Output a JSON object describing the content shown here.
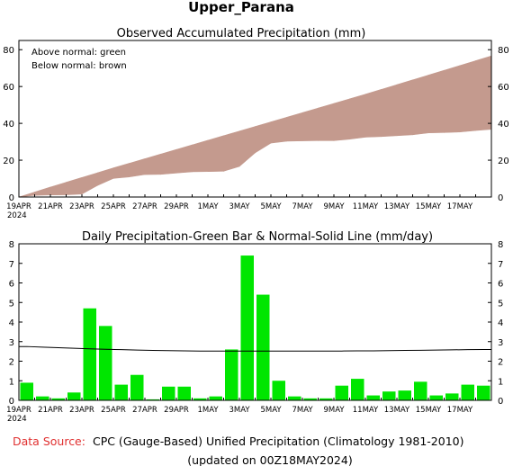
{
  "title": "Upper_Parana",
  "colors": {
    "above": "#00cc00",
    "below": "#c49a8e",
    "bar": "#00e600",
    "source_label": "#e03030"
  },
  "footer": {
    "source_label": "Data Source:",
    "source_text": "CPC (Gauge-Based) Unified Precipitation (Climatology 1981-2010)",
    "updated": "(updated on 00Z18MAY2024)"
  },
  "chart_data": [
    {
      "type": "area",
      "title": "Observed Accumulated Precipitation (mm)",
      "legend": [
        "Above normal: green",
        "Below normal: brown"
      ],
      "legend_placement": "top-left",
      "ylim": [
        0,
        85
      ],
      "yticks": [
        0,
        20,
        40,
        60,
        80
      ],
      "x_tick_labels": [
        "19APR",
        "21APR",
        "23APR",
        "25APR",
        "27APR",
        "29APR",
        "1MAY",
        "3MAY",
        "5MAY",
        "7MAY",
        "9MAY",
        "11MAY",
        "13MAY",
        "15MAY",
        "17MAY"
      ],
      "x_year_label": "2024",
      "grid": false,
      "series": [
        {
          "name": "Observed",
          "values": [
            0.9,
            1.1,
            1.2,
            1.6,
            6.3,
            10.1,
            10.9,
            12.2,
            12.3,
            13.0,
            13.7,
            13.8,
            14.0,
            16.6,
            24.0,
            29.3,
            30.3,
            30.5,
            30.6,
            30.6,
            31.4,
            32.5,
            32.8,
            33.3,
            33.8,
            34.8,
            35.0,
            35.3,
            36.1,
            36.8
          ]
        },
        {
          "name": "Normal",
          "values": [
            2.7,
            5.4,
            8.0,
            10.6,
            13.2,
            15.8,
            18.3,
            20.8,
            23.3,
            25.8,
            28.3,
            30.8,
            33.3,
            35.8,
            38.3,
            40.8,
            43.3,
            45.8,
            48.3,
            50.8,
            53.3,
            55.8,
            58.4,
            61.0,
            63.6,
            66.2,
            68.8,
            71.4,
            74.0,
            76.6
          ]
        }
      ]
    },
    {
      "type": "bar",
      "title": "Daily Precipitation-Green Bar & Normal-Solid Line (mm/day)",
      "ylim": [
        0,
        8
      ],
      "yticks": [
        0,
        1,
        2,
        3,
        4,
        5,
        6,
        7,
        8
      ],
      "x_tick_labels": [
        "19APR",
        "21APR",
        "23APR",
        "25APR",
        "27APR",
        "29APR",
        "1MAY",
        "3MAY",
        "5MAY",
        "7MAY",
        "9MAY",
        "11MAY",
        "13MAY",
        "15MAY",
        "17MAY"
      ],
      "x_year_label": "2024",
      "grid": false,
      "series": [
        {
          "name": "Daily Precipitation",
          "values": [
            0.9,
            0.2,
            0.1,
            0.4,
            4.7,
            3.8,
            0.8,
            1.3,
            0.05,
            0.7,
            0.7,
            0.1,
            0.2,
            2.6,
            7.4,
            5.4,
            1.0,
            0.2,
            0.1,
            0.1,
            0.75,
            1.1,
            0.25,
            0.45,
            0.5,
            0.95,
            0.25,
            0.35,
            0.8,
            0.75
          ]
        },
        {
          "name": "Normal",
          "values": [
            2.75,
            2.72,
            2.69,
            2.66,
            2.63,
            2.61,
            2.59,
            2.57,
            2.55,
            2.54,
            2.53,
            2.52,
            2.52,
            2.52,
            2.52,
            2.52,
            2.52,
            2.52,
            2.52,
            2.52,
            2.52,
            2.53,
            2.53,
            2.54,
            2.55,
            2.56,
            2.57,
            2.58,
            2.59,
            2.6
          ]
        }
      ]
    }
  ]
}
